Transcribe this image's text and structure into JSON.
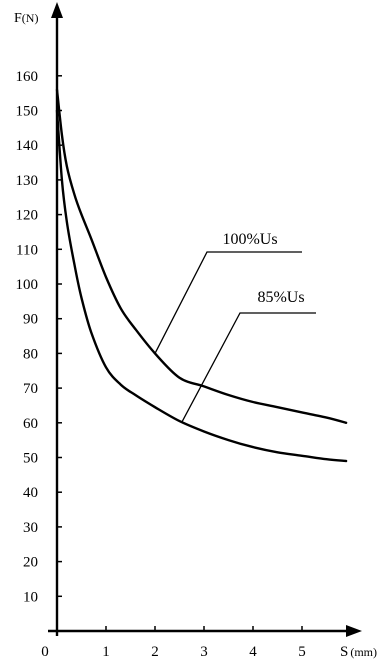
{
  "chart_data": {
    "type": "line",
    "xlabel": "S",
    "xunit": "(mm)",
    "ylabel": "F",
    "yunit": "(N)",
    "origin_label": "0",
    "x_ticks": [
      "1",
      "2",
      "3",
      "4",
      "5"
    ],
    "y_ticks": [
      "10",
      "20",
      "30",
      "40",
      "50",
      "60",
      "70",
      "80",
      "90",
      "100",
      "110",
      "120",
      "130",
      "140",
      "150",
      "160"
    ],
    "xlim": [
      0,
      5.9
    ],
    "ylim": [
      0,
      170
    ],
    "grid": false,
    "series": [
      {
        "name": "100%Us",
        "x": [
          0,
          0.1,
          0.2,
          0.35,
          0.5,
          0.7,
          1.0,
          1.3,
          1.6,
          2.0,
          2.5,
          3.0,
          3.5,
          4.0,
          4.5,
          5.0,
          5.5,
          5.9
        ],
        "y": [
          156,
          143,
          134,
          126,
          120,
          113,
          102,
          93,
          87,
          80,
          73,
          70.5,
          68,
          66,
          64.5,
          63,
          61.5,
          60
        ]
      },
      {
        "name": "85%Us",
        "x": [
          0,
          0.1,
          0.2,
          0.35,
          0.5,
          0.7,
          1.0,
          1.3,
          1.6,
          2.0,
          2.5,
          3.0,
          3.5,
          4.0,
          4.5,
          5.0,
          5.5,
          5.9
        ],
        "y": [
          150,
          130,
          118,
          106,
          96,
          86,
          76,
          71,
          68,
          64.5,
          60.5,
          57.5,
          55,
          53,
          51.5,
          50.5,
          49.5,
          49
        ]
      }
    ],
    "annotations": [
      {
        "text": "100%Us",
        "series": 0,
        "at_x": 2.0
      },
      {
        "text": "85%Us",
        "series": 1,
        "at_x": 2.55
      }
    ]
  }
}
